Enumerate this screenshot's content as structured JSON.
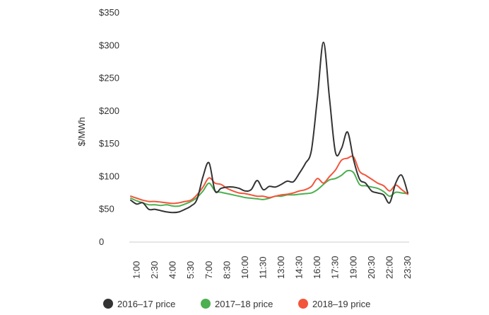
{
  "chart_data": {
    "type": "line",
    "title": "",
    "xlabel": "",
    "ylabel": "$/MWh",
    "ylim": [
      0,
      350
    ],
    "y_ticks": [
      0,
      50,
      100,
      150,
      200,
      250,
      300,
      350
    ],
    "y_tick_labels": [
      "0",
      "$50",
      "$100",
      "$150",
      "$200",
      "$250",
      "$300",
      "$350"
    ],
    "x": [
      "0:30",
      "1:00",
      "1:30",
      "2:00",
      "2:30",
      "3:00",
      "3:30",
      "4:00",
      "4:30",
      "5:00",
      "5:30",
      "6:00",
      "6:30",
      "7:00",
      "7:30",
      "8:00",
      "8:30",
      "9:00",
      "9:30",
      "10:00",
      "10:30",
      "11:00",
      "11:30",
      "12:00",
      "12:30",
      "13:00",
      "13:30",
      "14:00",
      "14:30",
      "15:00",
      "15:30",
      "16:00",
      "16:30",
      "17:00",
      "17:30",
      "18:00",
      "18:30",
      "19:00",
      "19:30",
      "20:00",
      "20:30",
      "21:00",
      "21:30",
      "22:00",
      "22:30",
      "23:00",
      "23:30"
    ],
    "x_tick_labels": [
      "1:00",
      "2:30",
      "4:00",
      "5:30",
      "7:00",
      "8:30",
      "10:00",
      "11:30",
      "13:00",
      "14:30",
      "16:00",
      "17:30",
      "19:00",
      "20:30",
      "22:00",
      "23:30"
    ],
    "legend_position": "bottom",
    "grid": false,
    "series": [
      {
        "name": "2016–17 price",
        "color": "#333333",
        "values": [
          64,
          58,
          60,
          50,
          50,
          48,
          46,
          45,
          46,
          50,
          55,
          65,
          100,
          121,
          78,
          82,
          84,
          84,
          82,
          78,
          80,
          94,
          80,
          85,
          84,
          88,
          93,
          92,
          105,
          120,
          140,
          220,
          305,
          220,
          137,
          143,
          168,
          126,
          96,
          90,
          78,
          75,
          72,
          60,
          90,
          102,
          75
        ]
      },
      {
        "name": "2017–18 price",
        "color": "#4caf50",
        "values": [
          67,
          63,
          60,
          57,
          57,
          56,
          57,
          55,
          55,
          58,
          62,
          68,
          78,
          90,
          78,
          76,
          74,
          72,
          70,
          68,
          67,
          66,
          65,
          67,
          70,
          70,
          72,
          72,
          73,
          74,
          75,
          80,
          88,
          95,
          97,
          102,
          109,
          106,
          88,
          86,
          84,
          82,
          77,
          70,
          76,
          75,
          74
        ]
      },
      {
        "name": "2018–19 price",
        "color": "#f2553a",
        "values": [
          70,
          67,
          64,
          62,
          62,
          61,
          60,
          59,
          60,
          62,
          64,
          72,
          84,
          98,
          90,
          88,
          82,
          78,
          75,
          74,
          72,
          70,
          70,
          68,
          70,
          72,
          73,
          75,
          78,
          80,
          85,
          97,
          90,
          100,
          110,
          125,
          128,
          130,
          108,
          102,
          96,
          90,
          86,
          78,
          87,
          80,
          73
        ]
      }
    ]
  }
}
